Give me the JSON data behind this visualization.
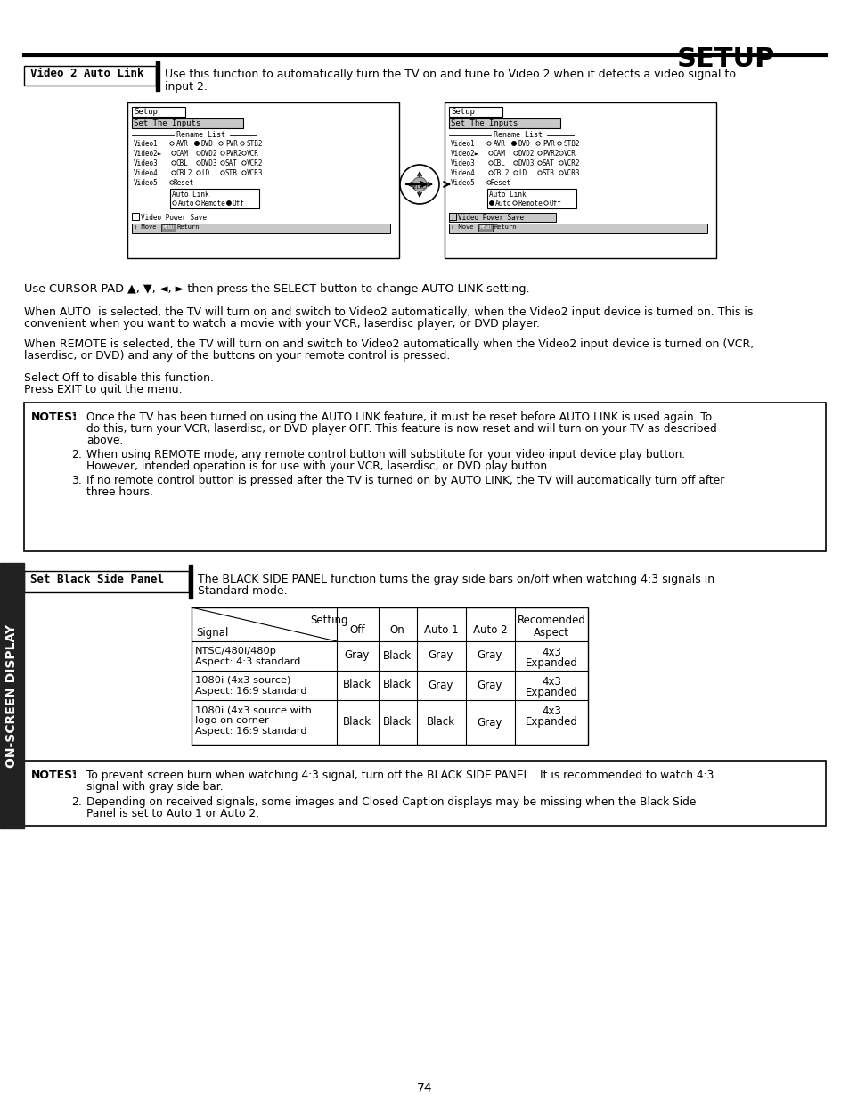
{
  "title": "SETUP",
  "page_number": "74",
  "sidebar_text": "ON-SCREEN DISPLAY",
  "section1_label": "Video 2 Auto Link",
  "section1_desc_1": "Use this function to automatically turn the TV on and tune to Video 2 when it detects a video signal to",
  "section1_desc_2": "input 2.",
  "cursor_pad_text": "Use CURSOR PAD ▲, ▼, ◄, ► then press the SELECT button to change AUTO LINK setting.",
  "auto_para1_1": "When AUTO  is selected, the TV will turn on and switch to Video2 automatically, when the Video2 input device is turned on. This is",
  "auto_para1_2": "convenient when you want to watch a movie with your VCR, laserdisc player, or DVD player.",
  "auto_para2_1": "When REMOTE is selected, the TV will turn on and switch to Video2 automatically when the Video2 input device is turned on (VCR,",
  "auto_para2_2": "laserdisc, or DVD) and any of the buttons on your remote control is pressed.",
  "auto_para3_1": "Select Off to disable this function.",
  "auto_para3_2": "Press EXIT to quit the menu.",
  "notes1_label": "NOTES:",
  "n1_1a": "Once the TV has been turned on using the AUTO LINK feature, it must be reset before AUTO LINK is used again. To",
  "n1_1b": "do this, turn your VCR, laserdisc, or DVD player OFF. This feature is now reset and will turn on your TV as described",
  "n1_1c": "above.",
  "n1_2a": "When using REMOTE mode, any remote control button will substitute for your video input device play button.",
  "n1_2b": "However, intended operation is for use with your VCR, laserdisc, or DVD play button.",
  "n1_3a": "If no remote control button is pressed after the TV is turned on by AUTO LINK, the TV will automatically turn off after",
  "n1_3b": "three hours.",
  "section2_label": "Set Black Side Panel",
  "section2_desc_1": "The BLACK SIDE PANEL function turns the gray side bars on/off when watching 4:3 signals in",
  "section2_desc_2": "Standard mode.",
  "n2_1a": "To prevent screen burn when watching 4:3 signal, turn off the BLACK SIDE PANEL.  It is recommended to watch 4:3",
  "n2_1b": "signal with gray side bar.",
  "n2_2a": "Depending on received signals, some images and Closed Caption displays may be missing when the Black Side",
  "n2_2b": "Panel is set to Auto 1 or Auto 2."
}
